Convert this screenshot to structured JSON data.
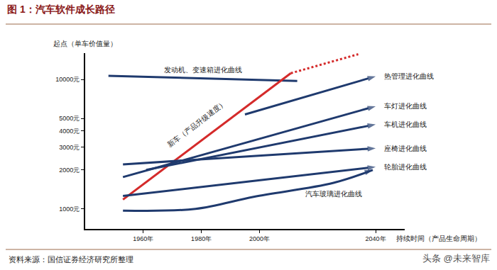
{
  "chart_data": {
    "type": "line",
    "title": "图 1：汽车软件成长路径",
    "x_label": "持续时间（产品生命周期）",
    "y_label": "起点（单车价值量）",
    "source": "资料来源：国信证券经济研究所整理",
    "watermark": "头条 @未来智库",
    "log": "y",
    "grid": false,
    "xlim": [
      1940,
      2050
    ],
    "xticks": [
      {
        "value": 1960,
        "label": "1960年"
      },
      {
        "value": 1980,
        "label": "1980年"
      },
      {
        "value": 2000,
        "label": "2000年"
      },
      {
        "value": 2040,
        "label": "2040年"
      }
    ],
    "ylim": [
      700,
      16000
    ],
    "yticks": [
      {
        "value": 1000,
        "label": "1000元"
      },
      {
        "value": 2000,
        "label": "2000元"
      },
      {
        "value": 3000,
        "label": "3000元"
      },
      {
        "value": 4000,
        "label": "4000元"
      },
      {
        "value": 5000,
        "label": "5000元"
      },
      {
        "value": 10000,
        "label": "10000元"
      }
    ],
    "series": [
      {
        "name": "发动机、变速箱进化曲线",
        "color": "#1f3a6e",
        "marker": "none",
        "line_style": "solid",
        "x": [
          1948,
          2013
        ],
        "values": [
          10700,
          9760
        ]
      },
      {
        "name": "新车（产品升级速度）",
        "color": "#d42a2a",
        "marker": "none",
        "line_style": "solid",
        "x": [
          1953,
          2010.8
        ],
        "values": [
          1180,
          11200
        ]
      },
      {
        "color": "#d42a2a",
        "marker": "none",
        "line_style": "dotted",
        "x": [
          2010.8,
          2034
        ],
        "values": [
          11200,
          15700
        ]
      },
      {
        "name": "热管理进化曲线",
        "color": "#1f3a6e",
        "marker": "arrow",
        "line_style": "solid",
        "x": [
          1995,
          2040
        ],
        "values": [
          5370,
          10600
        ]
      },
      {
        "name": "车灯进化曲线",
        "color": "#1f3a6e",
        "marker": "arrow",
        "line_style": "solid",
        "x": [
          1953,
          2040
        ],
        "values": [
          1760,
          6220
        ]
      },
      {
        "name": "车机进化曲线",
        "color": "#1f3a6e",
        "marker": "arrow",
        "line_style": "solid",
        "x": [
          1961,
          2040
        ],
        "values": [
          2000,
          4500
        ]
      },
      {
        "name": "座椅进化曲线",
        "color": "#1f3a6e",
        "marker": "arrow",
        "line_style": "solid",
        "x": [
          1953,
          2040
        ],
        "values": [
          2210,
          2940
        ]
      },
      {
        "name": "轮胎进化曲线",
        "color": "#1f3a6e",
        "marker": "arrow",
        "line_style": "solid",
        "x": [
          1953,
          2040
        ],
        "values": [
          1260,
          2110
        ]
      },
      {
        "name": "汽车玻璃进化曲线",
        "color": "#1f3a6e",
        "marker": "arrow",
        "line_style": "solid",
        "x": [
          1953,
          1978,
          1998,
          2025.5,
          2039
        ],
        "values": [
          970,
          1000,
          1240,
          1590,
          2000
        ]
      }
    ]
  }
}
